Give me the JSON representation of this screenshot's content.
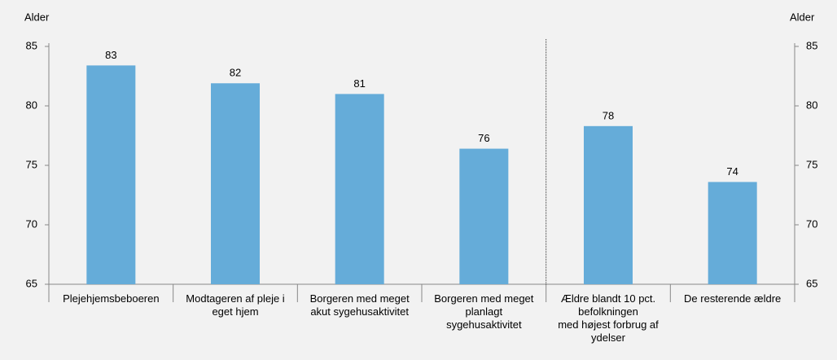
{
  "chart_data": {
    "type": "bar",
    "y_label": "Alder",
    "y2_label": "Alder",
    "categories": [
      "Plejehjemsbeboeren",
      "Modtageren af pleje i\neget hjem",
      "Borgeren med meget\nakut sygehusaktivitet",
      "Borgeren med meget\nplanlagt\nsygehusaktivitet",
      "Ældre blandt 10 pct.\nbefolkningen\nmed højest forbrug af\nydelser",
      "De resterende ældre"
    ],
    "values": [
      83.4,
      81.9,
      81.0,
      76.4,
      78.3,
      73.6
    ],
    "value_labels": [
      "83",
      "82",
      "81",
      "76",
      "78",
      "74"
    ],
    "color": "#65acd9",
    "ylim": [
      65,
      85
    ],
    "yticks": [
      65,
      70,
      75,
      80,
      85
    ],
    "y2lim": [
      65,
      85
    ],
    "y2ticks": [
      65,
      70,
      75,
      80,
      85
    ],
    "grid": false
  }
}
